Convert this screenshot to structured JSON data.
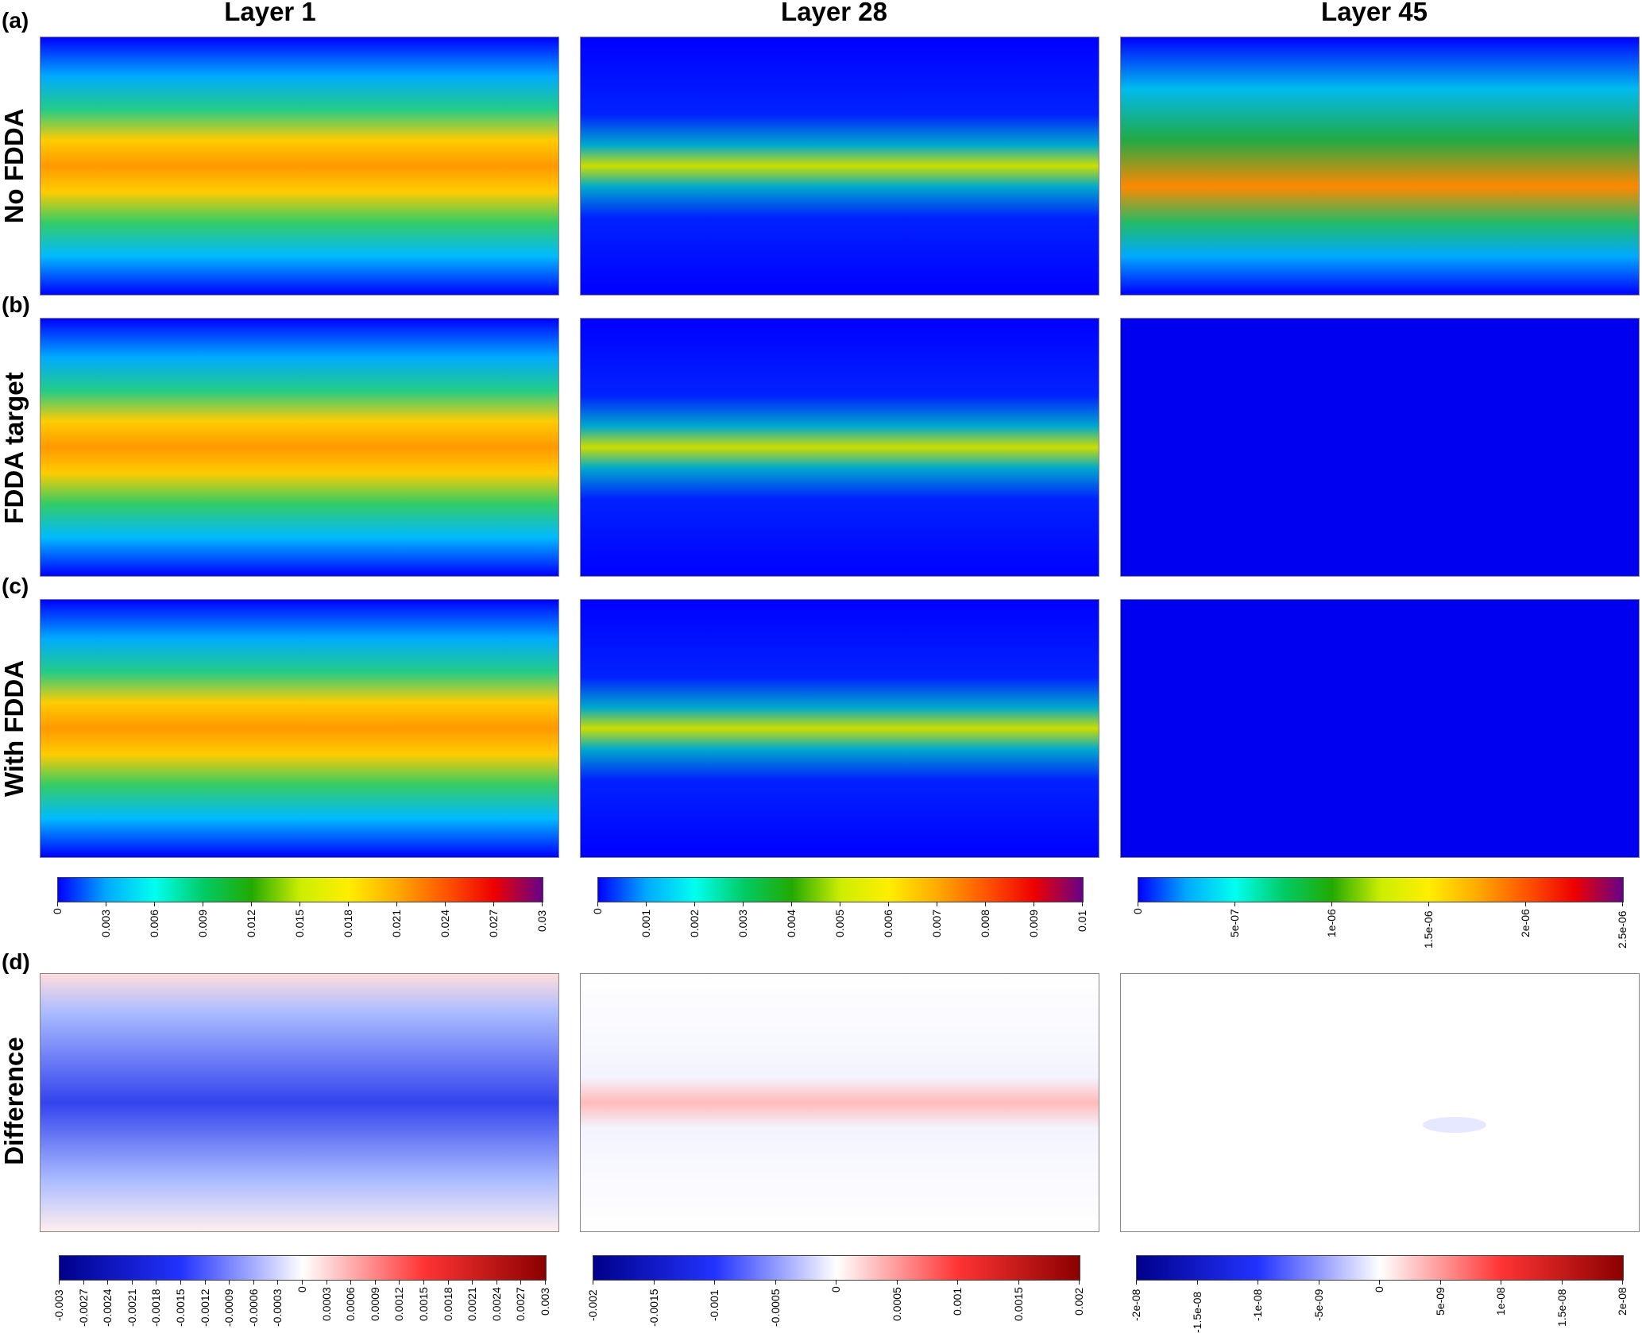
{
  "column_titles": [
    "Layer 1",
    "Layer 28",
    "Layer 45"
  ],
  "panel_letters": [
    "(a)",
    "(b)",
    "(c)",
    "(d)"
  ],
  "row_labels": [
    "No FDDA",
    "FDDA target",
    "With FDDA",
    "Difference"
  ],
  "colorbars_top": [
    {
      "ticks": [
        "0",
        "0.003",
        "0.006",
        "0.009",
        "0.012",
        "0.015",
        "0.018",
        "0.021",
        "0.024",
        "0.027",
        "0.03"
      ]
    },
    {
      "ticks": [
        "0",
        "0.001",
        "0.002",
        "0.003",
        "0.004",
        "0.005",
        "0.006",
        "0.007",
        "0.008",
        "0.009",
        "0.01"
      ]
    },
    {
      "ticks": [
        "0",
        "5e-07",
        "1e-06",
        "1.5e-06",
        "2e-06",
        "2.5e-06"
      ]
    }
  ],
  "colorbars_diff": [
    {
      "ticks": [
        "-0.003",
        "-0.0027",
        "-0.0024",
        "-0.0021",
        "-0.0018",
        "-0.0015",
        "-0.0012",
        "-0.0009",
        "-0.0006",
        "-0.0003",
        "0",
        "0.0003",
        "0.0006",
        "0.0009",
        "0.0012",
        "0.0015",
        "0.0018",
        "0.0021",
        "0.0024",
        "0.0027",
        "0.003"
      ]
    },
    {
      "ticks": [
        "-0.002",
        "-0.0015",
        "-0.001",
        "-0.0005",
        "0",
        "0.0005",
        "0.001",
        "0.0015",
        "0.002"
      ]
    },
    {
      "ticks": [
        "-2e-08",
        "-1.5e-08",
        "-1e-08",
        "-5e-09",
        "0",
        "5e-09",
        "1e-08",
        "1.5e-08",
        "2e-08"
      ]
    }
  ],
  "colors": {
    "rainbow": [
      "#0000ff",
      "#00aaff",
      "#00ffee",
      "#00cc66",
      "#22aa00",
      "#ccee00",
      "#ffee00",
      "#ffaa00",
      "#ff5500",
      "#ee0000",
      "#660088"
    ],
    "diverging": [
      "#00008b",
      "#2233ff",
      "#ffffff",
      "#ff3333",
      "#8b0000"
    ]
  }
}
